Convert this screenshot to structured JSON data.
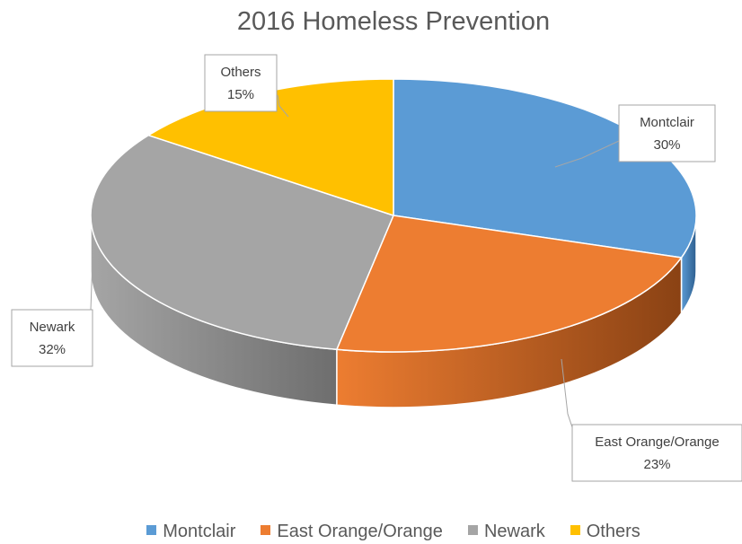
{
  "chart_data": {
    "type": "pie",
    "title": "2016 Homeless Prevention",
    "slices": [
      {
        "label": "Montclair",
        "value": 30,
        "display": "30%",
        "color": "#5b9bd5",
        "side_color": "#2e5f8f"
      },
      {
        "label": "East Orange/Orange",
        "value": 23,
        "display": "23%",
        "color": "#ed7d31",
        "side_color": "#8a4214"
      },
      {
        "label": "Newark",
        "value": 32,
        "display": "32%",
        "color": "#a5a5a5",
        "side_color": "#6e6e6e"
      },
      {
        "label": "Others",
        "value": 15,
        "display": "15%",
        "color": "#ffc000",
        "side_color": "#a67c00"
      }
    ],
    "legend_position": "bottom",
    "style": "3d-pie"
  }
}
